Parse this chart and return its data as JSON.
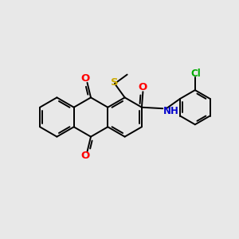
{
  "background_color": "#e8e8e8",
  "bond_color": "#000000",
  "atom_colors": {
    "O": "#ff0000",
    "S": "#ccaa00",
    "N": "#0000cc",
    "Cl": "#00aa00",
    "C": "#000000"
  },
  "font_size": 8.5,
  "line_width": 1.4,
  "fig_size": [
    3.0,
    3.0
  ],
  "dpi": 100
}
